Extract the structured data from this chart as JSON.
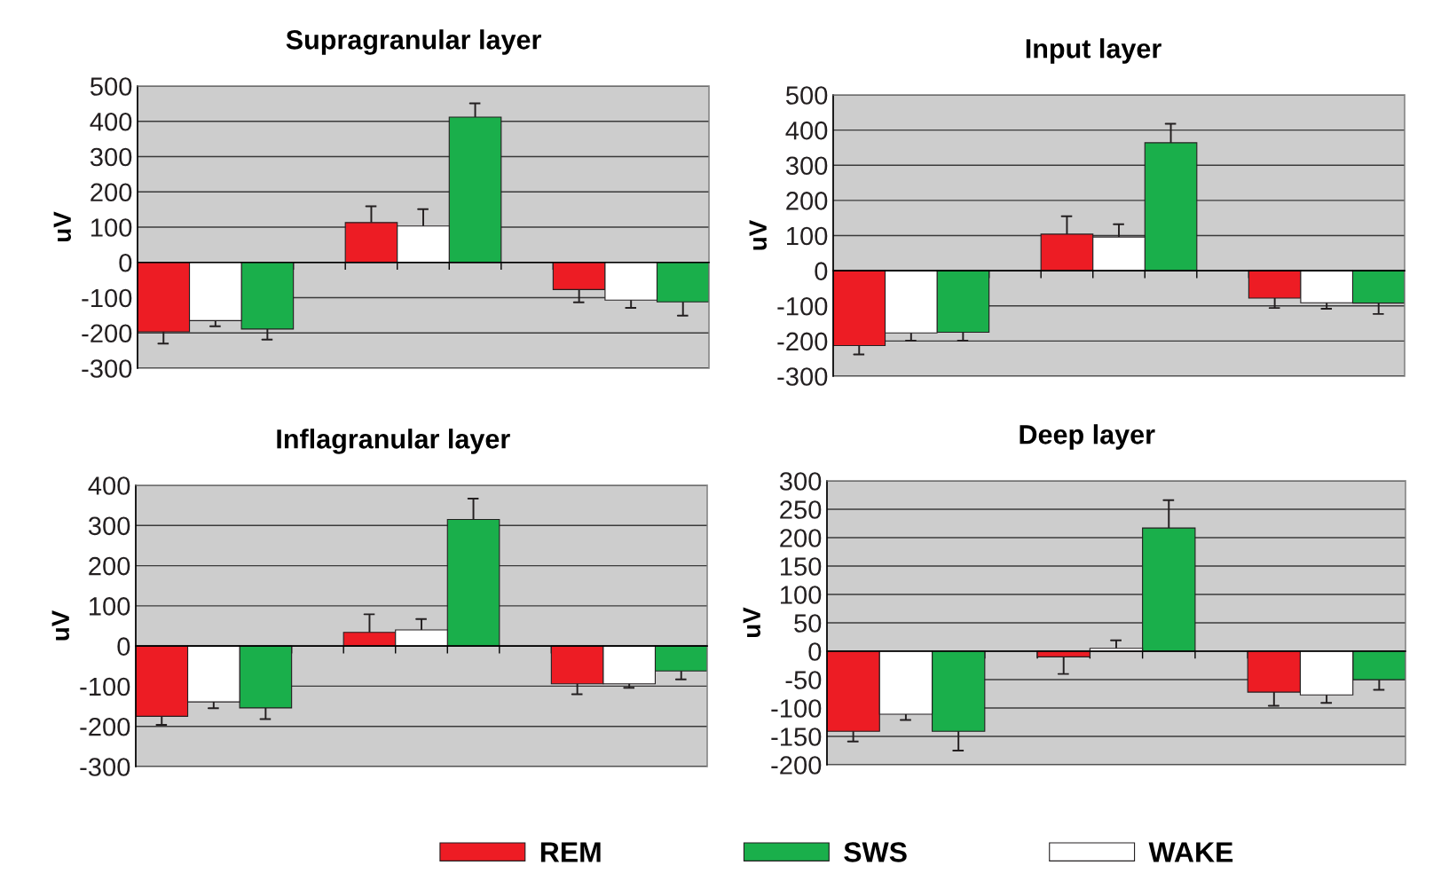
{
  "chart_data": [
    {
      "type": "bar",
      "title": "Supragranular layer",
      "ylabel": "uV",
      "categories": [
        null,
        null,
        null,
        null,
        null,
        null,
        null,
        null,
        null,
        null,
        null
      ],
      "ylim": [
        -300,
        500
      ],
      "yticks": [
        -300,
        -200,
        -100,
        0,
        100,
        200,
        300,
        400,
        500
      ],
      "grid": "y",
      "series": [
        {
          "color": "#ed1c24",
          "values": [
            -197,
            null,
            null,
            null,
            113,
            null,
            null,
            null,
            -77,
            null,
            null
          ],
          "errors": [
            [
              -230,
              -197
            ],
            null,
            null,
            null,
            [
              113,
              159
            ],
            null,
            null,
            null,
            [
              -113,
              -77
            ],
            null,
            null
          ]
        },
        {
          "color": "#1aaf4b",
          "values": [
            null,
            null,
            -189,
            null,
            null,
            null,
            412,
            null,
            null,
            null,
            -112
          ],
          "errors": [
            null,
            null,
            [
              -219,
              -189
            ],
            null,
            null,
            null,
            [
              412,
              451
            ],
            null,
            null,
            null,
            [
              -151,
              -112
            ]
          ]
        },
        {
          "color": "#ffffff",
          "values": [
            null,
            -165,
            null,
            null,
            null,
            103,
            null,
            null,
            null,
            -107,
            null
          ],
          "errors": [
            null,
            [
              -181,
              -165
            ],
            null,
            null,
            null,
            [
              103,
              151
            ],
            null,
            null,
            null,
            [
              -129,
              -107
            ],
            null
          ]
        }
      ]
    },
    {
      "type": "bar",
      "title": "Input layer",
      "ylabel": "uV",
      "categories": [
        null,
        null,
        null,
        null,
        null,
        null,
        null,
        null,
        null,
        null,
        null
      ],
      "ylim": [
        -300,
        500
      ],
      "yticks": [
        -300,
        -200,
        -100,
        0,
        100,
        200,
        300,
        400,
        500
      ],
      "grid": "y",
      "series": [
        {
          "color": "#ed1c24",
          "values": [
            -213,
            null,
            null,
            null,
            104,
            null,
            null,
            null,
            -78,
            null,
            null
          ],
          "errors": [
            [
              -238,
              -213
            ],
            null,
            null,
            null,
            [
              104,
              155
            ],
            null,
            null,
            null,
            [
              -106,
              -78
            ],
            null,
            null
          ]
        },
        {
          "color": "#1aaf4b",
          "values": [
            null,
            null,
            -175,
            null,
            null,
            null,
            364,
            null,
            null,
            null,
            -92
          ],
          "errors": [
            null,
            null,
            [
              -199,
              -175
            ],
            null,
            null,
            null,
            [
              364,
              418
            ],
            null,
            null,
            null,
            [
              -123,
              -92
            ]
          ]
        },
        {
          "color": "#ffffff",
          "values": [
            null,
            -177,
            null,
            null,
            null,
            96,
            null,
            null,
            null,
            -91,
            null
          ],
          "errors": [
            null,
            [
              -199,
              -177
            ],
            null,
            null,
            null,
            [
              96,
              132
            ],
            null,
            null,
            null,
            [
              -108,
              -91
            ],
            null
          ]
        }
      ]
    },
    {
      "type": "bar",
      "title": "Inflagranular layer",
      "ylabel": "uV",
      "categories": [
        null,
        null,
        null,
        null,
        null,
        null,
        null,
        null,
        null,
        null,
        null
      ],
      "ylim": [
        -300,
        400
      ],
      "yticks": [
        -300,
        -200,
        -100,
        0,
        100,
        200,
        300,
        400
      ],
      "grid": "y",
      "series": [
        {
          "color": "#ed1c24",
          "values": [
            -175,
            null,
            null,
            null,
            34,
            null,
            null,
            null,
            -94,
            null,
            null
          ],
          "errors": [
            [
              -196,
              -175
            ],
            null,
            null,
            null,
            [
              34,
              79
            ],
            null,
            null,
            null,
            [
              -120,
              -94
            ],
            null,
            null
          ]
        },
        {
          "color": "#1aaf4b",
          "values": [
            null,
            null,
            -154,
            null,
            null,
            null,
            315,
            null,
            null,
            null,
            -62
          ],
          "errors": [
            null,
            null,
            [
              -182,
              -154
            ],
            null,
            null,
            null,
            [
              315,
              367
            ],
            null,
            null,
            null,
            [
              -83,
              -62
            ]
          ]
        },
        {
          "color": "#ffffff",
          "values": [
            null,
            -139,
            null,
            null,
            null,
            40,
            null,
            null,
            null,
            -94,
            null
          ],
          "errors": [
            null,
            [
              -155,
              -139
            ],
            null,
            null,
            null,
            [
              40,
              67
            ],
            null,
            null,
            null,
            [
              -104,
              -94
            ],
            null
          ]
        }
      ]
    },
    {
      "type": "bar",
      "title": "Deep layer",
      "ylabel": "uV",
      "categories": [
        null,
        null,
        null,
        null,
        null,
        null,
        null,
        null,
        null,
        null,
        null
      ],
      "ylim": [
        -200,
        300
      ],
      "yticks": [
        -200,
        -150,
        -100,
        -50,
        0,
        50,
        100,
        150,
        200,
        250,
        300
      ],
      "grid": "y",
      "legend": "bottom",
      "series": [
        {
          "name": "REM",
          "color": "#ed1c24",
          "values": [
            -141,
            null,
            null,
            null,
            -10,
            null,
            null,
            null,
            -72,
            null,
            null
          ],
          "errors": [
            [
              -159,
              -141
            ],
            null,
            null,
            null,
            [
              -40,
              -10
            ],
            null,
            null,
            null,
            [
              -96,
              -72
            ],
            null,
            null
          ]
        },
        {
          "name": "SWS",
          "color": "#1aaf4b",
          "values": [
            null,
            null,
            -141,
            null,
            null,
            null,
            217,
            null,
            null,
            null,
            -50
          ],
          "errors": [
            null,
            null,
            [
              -175,
              -141
            ],
            null,
            null,
            null,
            [
              217,
              266
            ],
            null,
            null,
            null,
            [
              -68,
              -50
            ]
          ]
        },
        {
          "name": "WAKE",
          "color": "#ffffff",
          "values": [
            null,
            -111,
            null,
            null,
            null,
            5,
            null,
            null,
            null,
            -77,
            null
          ],
          "errors": [
            null,
            [
              -121,
              -111
            ],
            null,
            null,
            null,
            [
              5,
              19
            ],
            null,
            null,
            null,
            [
              -91,
              -77
            ],
            null
          ]
        }
      ]
    }
  ]
}
